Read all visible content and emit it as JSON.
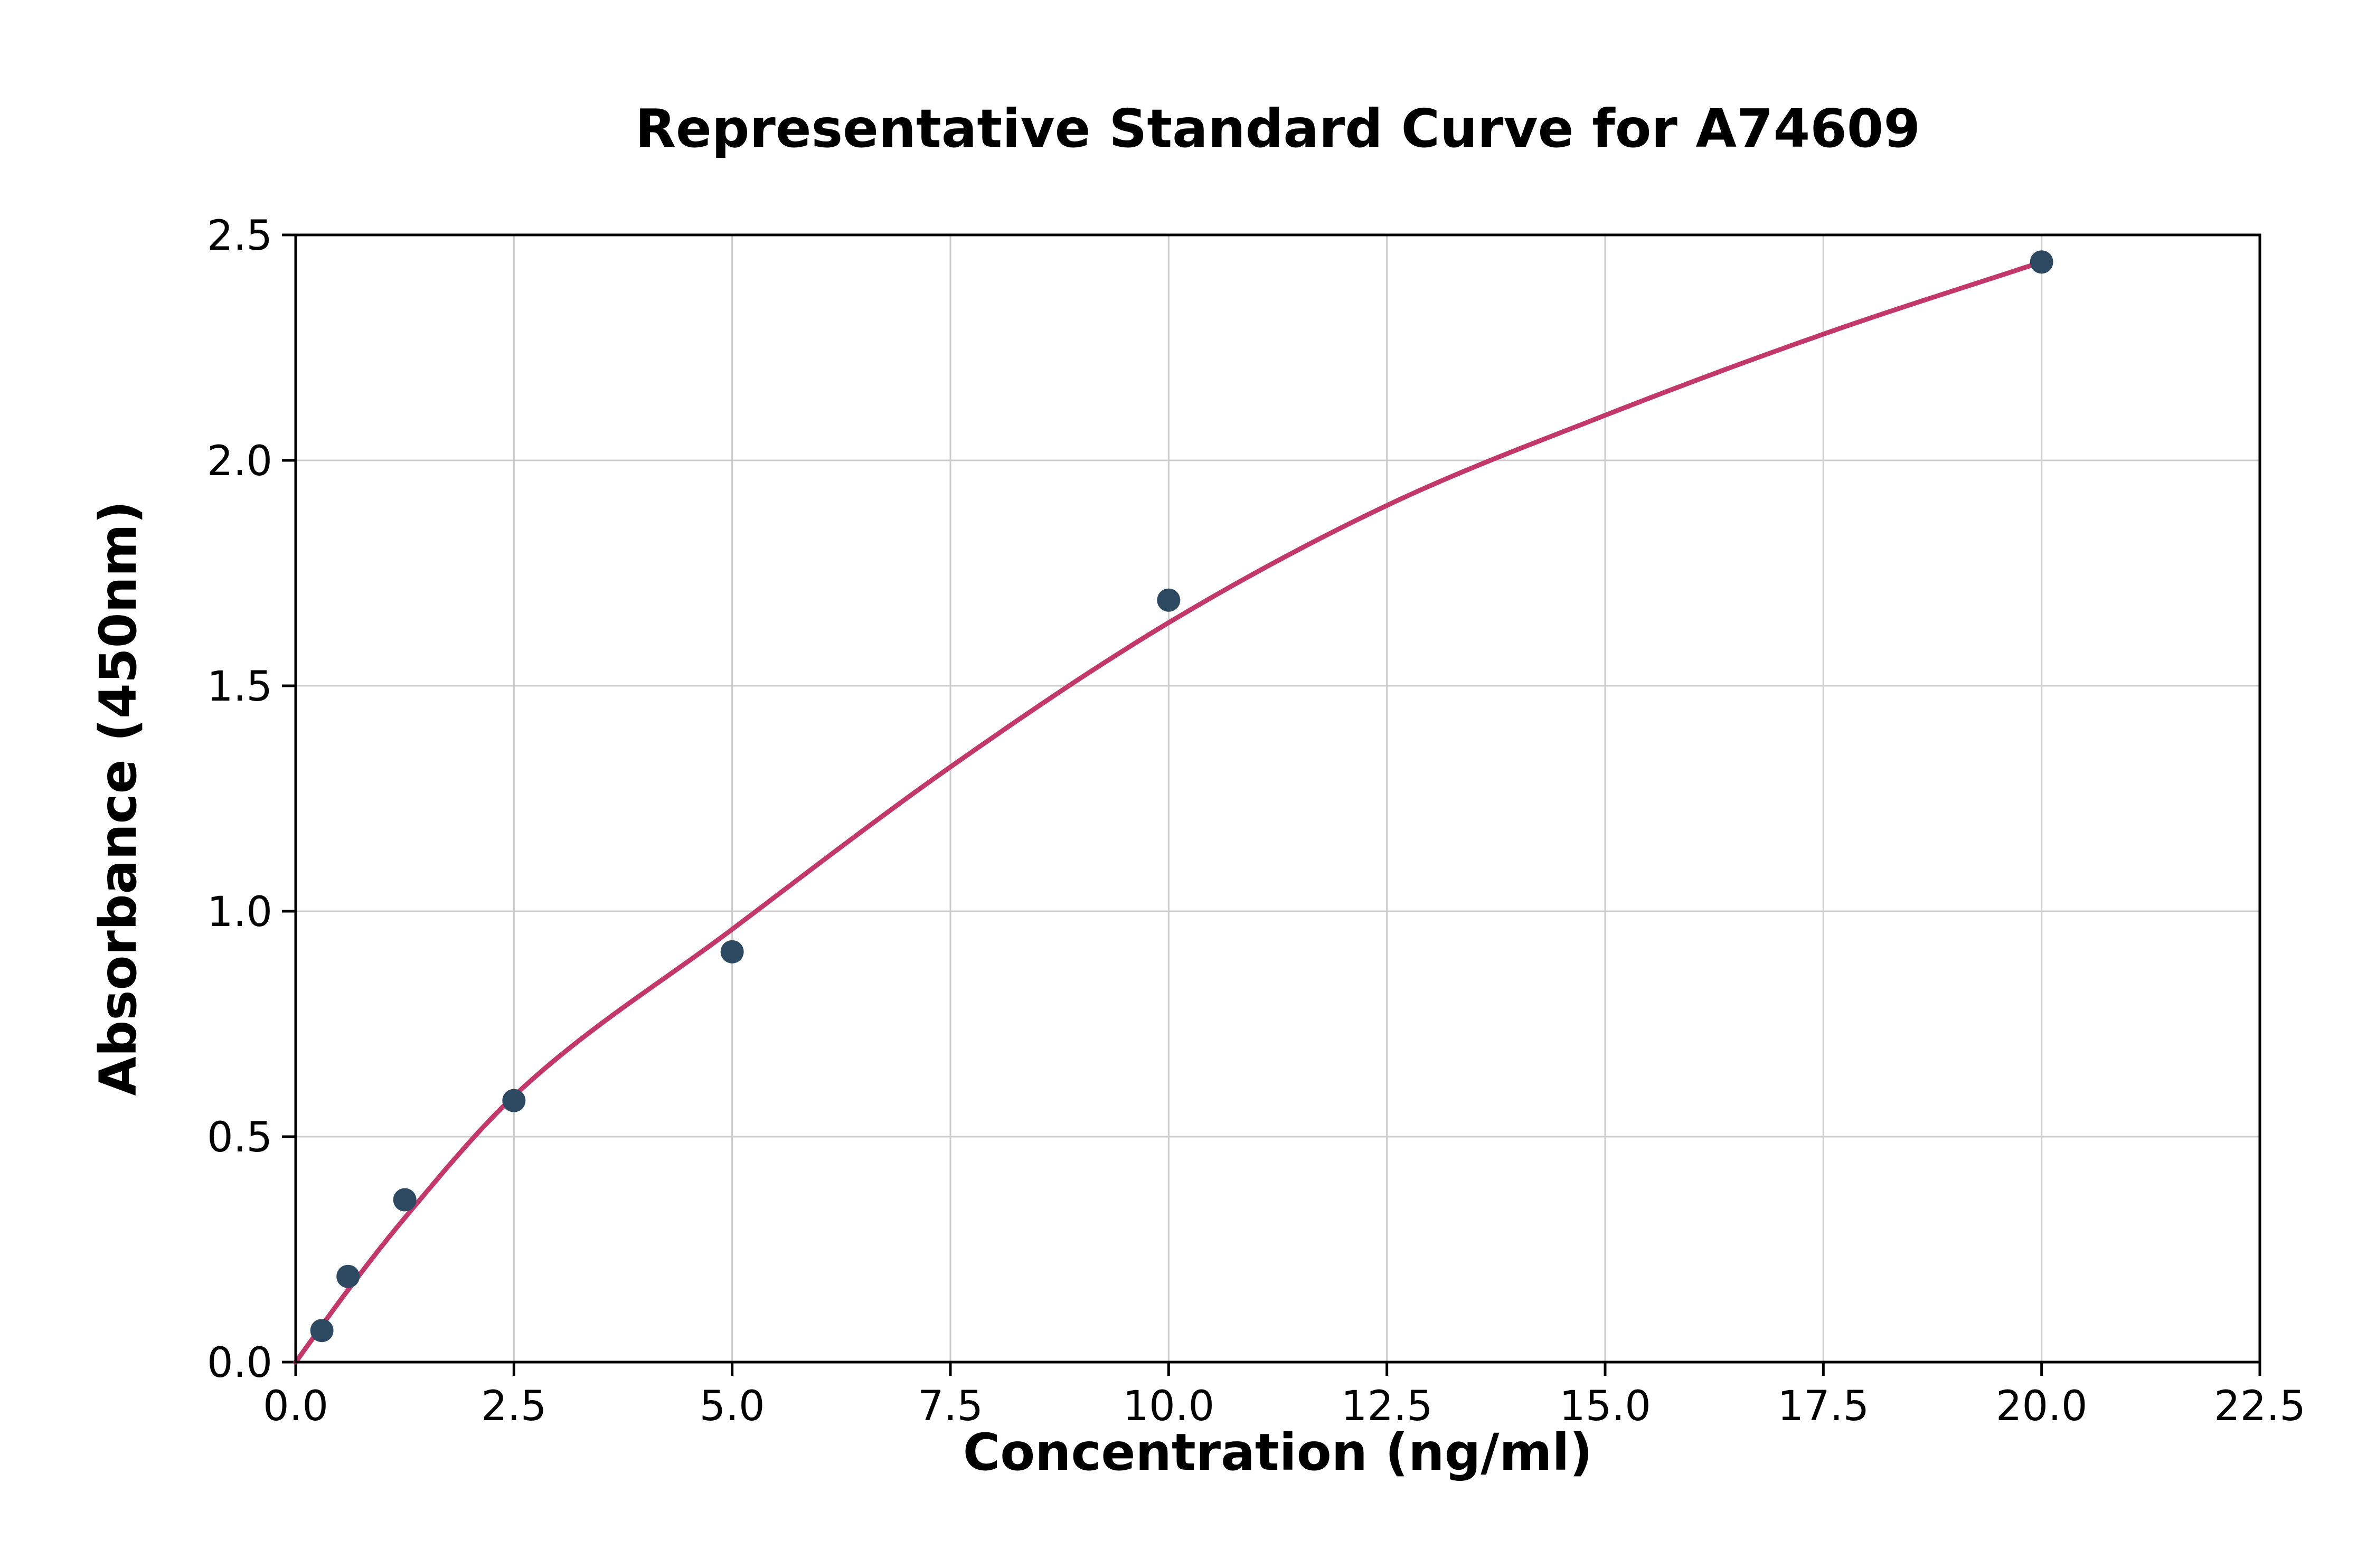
{
  "chart_data": {
    "type": "scatter",
    "title": "Representative Standard Curve for A74609",
    "xlabel": "Concentration (ng/ml)",
    "ylabel": "Absorbance (450nm)",
    "xlim": [
      0,
      22.5
    ],
    "ylim": [
      0,
      2.5
    ],
    "grid": true,
    "legend": "none",
    "xticks": {
      "values": [
        0,
        2.5,
        5,
        7.5,
        10,
        12.5,
        15,
        17.5,
        20,
        22.5
      ],
      "labels": [
        "0.0",
        "2.5",
        "5.0",
        "7.5",
        "10.0",
        "12.5",
        "15.0",
        "17.5",
        "20.0",
        "22.5"
      ]
    },
    "yticks": {
      "values": [
        0,
        0.5,
        1,
        1.5,
        2,
        2.5
      ],
      "labels": [
        "0.0",
        "0.5",
        "1.0",
        "1.5",
        "2.0",
        "2.5"
      ]
    },
    "series": [
      {
        "name": "fit-curve",
        "type": "line",
        "color": "#c2386b",
        "points": [
          [
            0,
            0
          ],
          [
            0.6,
            0.16
          ],
          [
            1.25,
            0.32
          ],
          [
            2.5,
            0.59
          ],
          [
            5.0,
            0.96
          ],
          [
            7.5,
            1.32
          ],
          [
            10.0,
            1.64
          ],
          [
            12.5,
            1.9
          ],
          [
            15.0,
            2.1
          ],
          [
            17.5,
            2.28
          ],
          [
            20.0,
            2.44
          ]
        ]
      },
      {
        "name": "standard-points",
        "type": "scatter",
        "color": "#2e4a62",
        "points": [
          [
            0.3,
            0.07
          ],
          [
            0.6,
            0.19
          ],
          [
            1.25,
            0.36
          ],
          [
            2.5,
            0.58
          ],
          [
            5.0,
            0.91
          ],
          [
            10.0,
            1.69
          ],
          [
            20.0,
            2.44
          ]
        ]
      }
    ],
    "colors": {
      "points": "#2e4a62",
      "curve": "#c2386b",
      "grid": "#cccccc",
      "axis": "#000000",
      "text": "#000000",
      "background": "#ffffff"
    }
  }
}
